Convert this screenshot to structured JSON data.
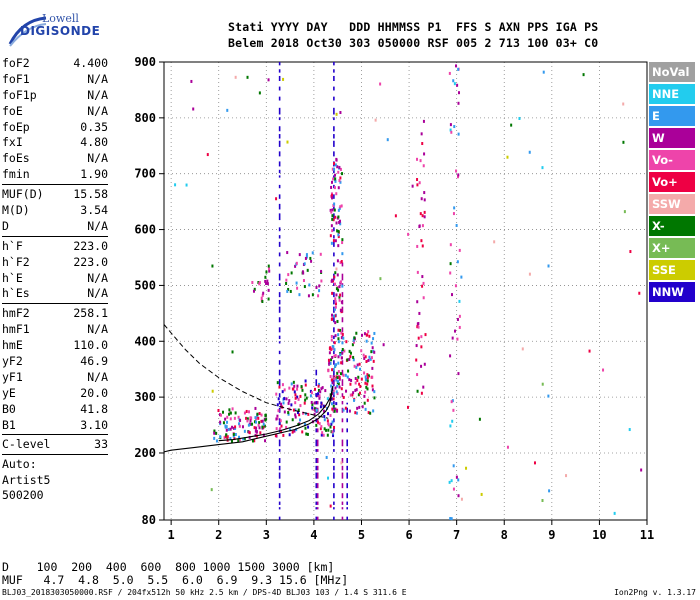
{
  "brand": {
    "line1": "Lowell",
    "line2": "DIGISONDE"
  },
  "header": {
    "row1": "Stati YYYY DAY   DDD HHMMSS P1  FFS S AXN PPS IGA PS",
    "row2": "Belem 2018 Oct30 303 050000 RSF 005 2 713 100 03+ C0"
  },
  "params": [
    {
      "k": "foF2",
      "v": "4.400"
    },
    {
      "k": "foF1",
      "v": "N/A"
    },
    {
      "k": "foF1p",
      "v": "N/A"
    },
    {
      "k": "foE",
      "v": "N/A"
    },
    {
      "k": "foEp",
      "v": "0.35"
    },
    {
      "k": "fxI",
      "v": "4.80"
    },
    {
      "k": "foEs",
      "v": "N/A"
    },
    {
      "k": "fmin",
      "v": "1.90"
    },
    {
      "sep": true
    },
    {
      "k": "MUF(D)",
      "v": "15.58"
    },
    {
      "k": "M(D)",
      "v": "3.54"
    },
    {
      "k": "D",
      "v": "N/A"
    },
    {
      "sep": true
    },
    {
      "k": "h`F",
      "v": "223.0"
    },
    {
      "k": "h`F2",
      "v": "223.0"
    },
    {
      "k": "h`E",
      "v": "N/A"
    },
    {
      "k": "h`Es",
      "v": "N/A"
    },
    {
      "sep": true
    },
    {
      "k": "hmF2",
      "v": "258.1"
    },
    {
      "k": "hmF1",
      "v": "N/A"
    },
    {
      "k": "hmE",
      "v": "110.0"
    },
    {
      "k": "yF2",
      "v": "46.9"
    },
    {
      "k": "yF1",
      "v": "N/A"
    },
    {
      "k": "yE",
      "v": "20.0"
    },
    {
      "k": "B0",
      "v": "41.8"
    },
    {
      "k": "B1",
      "v": "3.10"
    },
    {
      "sep": true
    },
    {
      "k": "C-level",
      "v": "33"
    },
    {
      "sep": true
    }
  ],
  "auto": [
    "Auto:",
    "Artist5",
    "500200"
  ],
  "legend": [
    {
      "label": "NoVal",
      "color": "#a0a0a0"
    },
    {
      "label": "NNE",
      "color": "#22ccee"
    },
    {
      "label": "E",
      "color": "#3399ee"
    },
    {
      "label": "W",
      "color": "#aa0099"
    },
    {
      "label": "Vo-",
      "color": "#ee44aa"
    },
    {
      "label": "Vo+",
      "color": "#ee0044"
    },
    {
      "label": "SSW",
      "color": "#f4aaaa"
    },
    {
      "label": "X-",
      "color": "#007700"
    },
    {
      "label": "X+",
      "color": "#77bb55"
    },
    {
      "label": "SSE",
      "color": "#cccc00"
    },
    {
      "label": "NNW",
      "color": "#2200cc"
    }
  ],
  "footer": {
    "d_row": "D    100  200  400  600  800 1000 1500 3000 [km]",
    "muf_row": "MUF   4.7  4.8  5.0  5.5  6.0  6.9  9.3 15.6 [MHz]",
    "file_line": "BLJ03_2018303050000.RSF / 204fx512h 50 kHz 2.5 km / DPS-4D BLJ03 103 / 1.4 S 311.6 E",
    "version": "Ion2Png v. 1.3.17"
  },
  "chart_data": {
    "type": "scatter",
    "title": "",
    "xlabel": "",
    "ylabel": "",
    "xlim": [
      0.85,
      11.0
    ],
    "ylim": [
      80,
      900
    ],
    "xticks": [
      1,
      2,
      3,
      4,
      5,
      6,
      7,
      8,
      9,
      10,
      11
    ],
    "yticks": [
      80,
      200,
      300,
      400,
      500,
      600,
      700,
      800,
      900
    ],
    "grid": true,
    "true_height_profile": {
      "x": [
        0.85,
        1.0,
        1.5,
        2.0,
        2.5,
        3.0,
        3.3,
        3.6,
        3.9,
        4.1,
        4.25,
        4.32,
        4.36,
        4.4
      ],
      "y": [
        202,
        205,
        210,
        215,
        220,
        230,
        236,
        242,
        252,
        262,
        275,
        285,
        298,
        320
      ]
    },
    "extrapolated_profile": {
      "x": [
        0.85,
        1.0,
        1.3,
        1.6,
        2.0,
        2.5,
        3.0,
        3.5,
        4.0,
        4.3
      ],
      "y": [
        430,
        415,
        385,
        360,
        335,
        310,
        290,
        278,
        268,
        262
      ]
    },
    "virtual_height_trace": {
      "x": [
        2.0,
        2.3,
        2.6,
        3.0,
        3.3,
        3.6,
        3.9,
        4.1,
        4.25,
        4.35,
        4.4
      ],
      "y": [
        222,
        224,
        228,
        234,
        240,
        248,
        258,
        270,
        285,
        300,
        320
      ]
    },
    "point_clusters": [
      {
        "x": [
          1.9,
          3.0
        ],
        "y": [
          220,
          280
        ],
        "n": 120,
        "colors": [
          "#ee0044",
          "#ee44aa",
          "#aa0099",
          "#007700",
          "#3399ee"
        ]
      },
      {
        "x": [
          3.2,
          4.5
        ],
        "y": [
          230,
          330
        ],
        "n": 160,
        "colors": [
          "#ee0044",
          "#ee44aa",
          "#aa0099",
          "#007700",
          "#3399ee",
          "#2200cc"
        ]
      },
      {
        "x": [
          4.3,
          5.3
        ],
        "y": [
          270,
          420
        ],
        "n": 160,
        "colors": [
          "#ee0044",
          "#ee44aa",
          "#3399ee",
          "#007700",
          "#aa0099"
        ]
      },
      {
        "x": [
          4.35,
          4.6
        ],
        "y": [
          330,
          730
        ],
        "n": 130,
        "colors": [
          "#ee44aa",
          "#aa0099",
          "#007700",
          "#3399ee",
          "#ee0044"
        ]
      },
      {
        "x": [
          3.4,
          4.2
        ],
        "y": [
          480,
          560
        ],
        "n": 40,
        "colors": [
          "#ee44aa",
          "#007700",
          "#aa0099",
          "#3399ee"
        ]
      },
      {
        "x": [
          2.7,
          3.1
        ],
        "y": [
          470,
          540
        ],
        "n": 22,
        "colors": [
          "#ee44aa",
          "#aa0099",
          "#007700"
        ]
      },
      {
        "x": [
          6.15,
          6.35
        ],
        "y": [
          300,
          800
        ],
        "n": 45,
        "colors": [
          "#aa0099",
          "#ee0044",
          "#ee44aa"
        ]
      },
      {
        "x": [
          6.85,
          7.1
        ],
        "y": [
          80,
          900
        ],
        "n": 50,
        "colors": [
          "#3399ee",
          "#22ccee",
          "#aa0099",
          "#ee44aa"
        ]
      },
      {
        "x": [
          1.0,
          11.0
        ],
        "y": [
          80,
          900
        ],
        "n": 70,
        "colors": [
          "#3399ee",
          "#aa0099",
          "#ee44aa",
          "#ee0044",
          "#007700",
          "#77bb55",
          "#cccc00",
          "#22ccee",
          "#f4aaaa"
        ]
      }
    ],
    "vertical_streaks": [
      {
        "x": 3.28,
        "y": [
          80,
          900
        ],
        "color": "#2200cc"
      },
      {
        "x": 4.05,
        "y": [
          80,
          350
        ],
        "color": "#2200cc"
      },
      {
        "x": 4.08,
        "y": [
          80,
          320
        ],
        "color": "#aa0099"
      },
      {
        "x": 4.42,
        "y": [
          80,
          900
        ],
        "color": "#2200cc"
      },
      {
        "x": 4.6,
        "y": [
          80,
          550
        ],
        "color": "#aa0099"
      },
      {
        "x": 4.7,
        "y": [
          80,
          290
        ],
        "color": "#2200cc"
      }
    ]
  }
}
